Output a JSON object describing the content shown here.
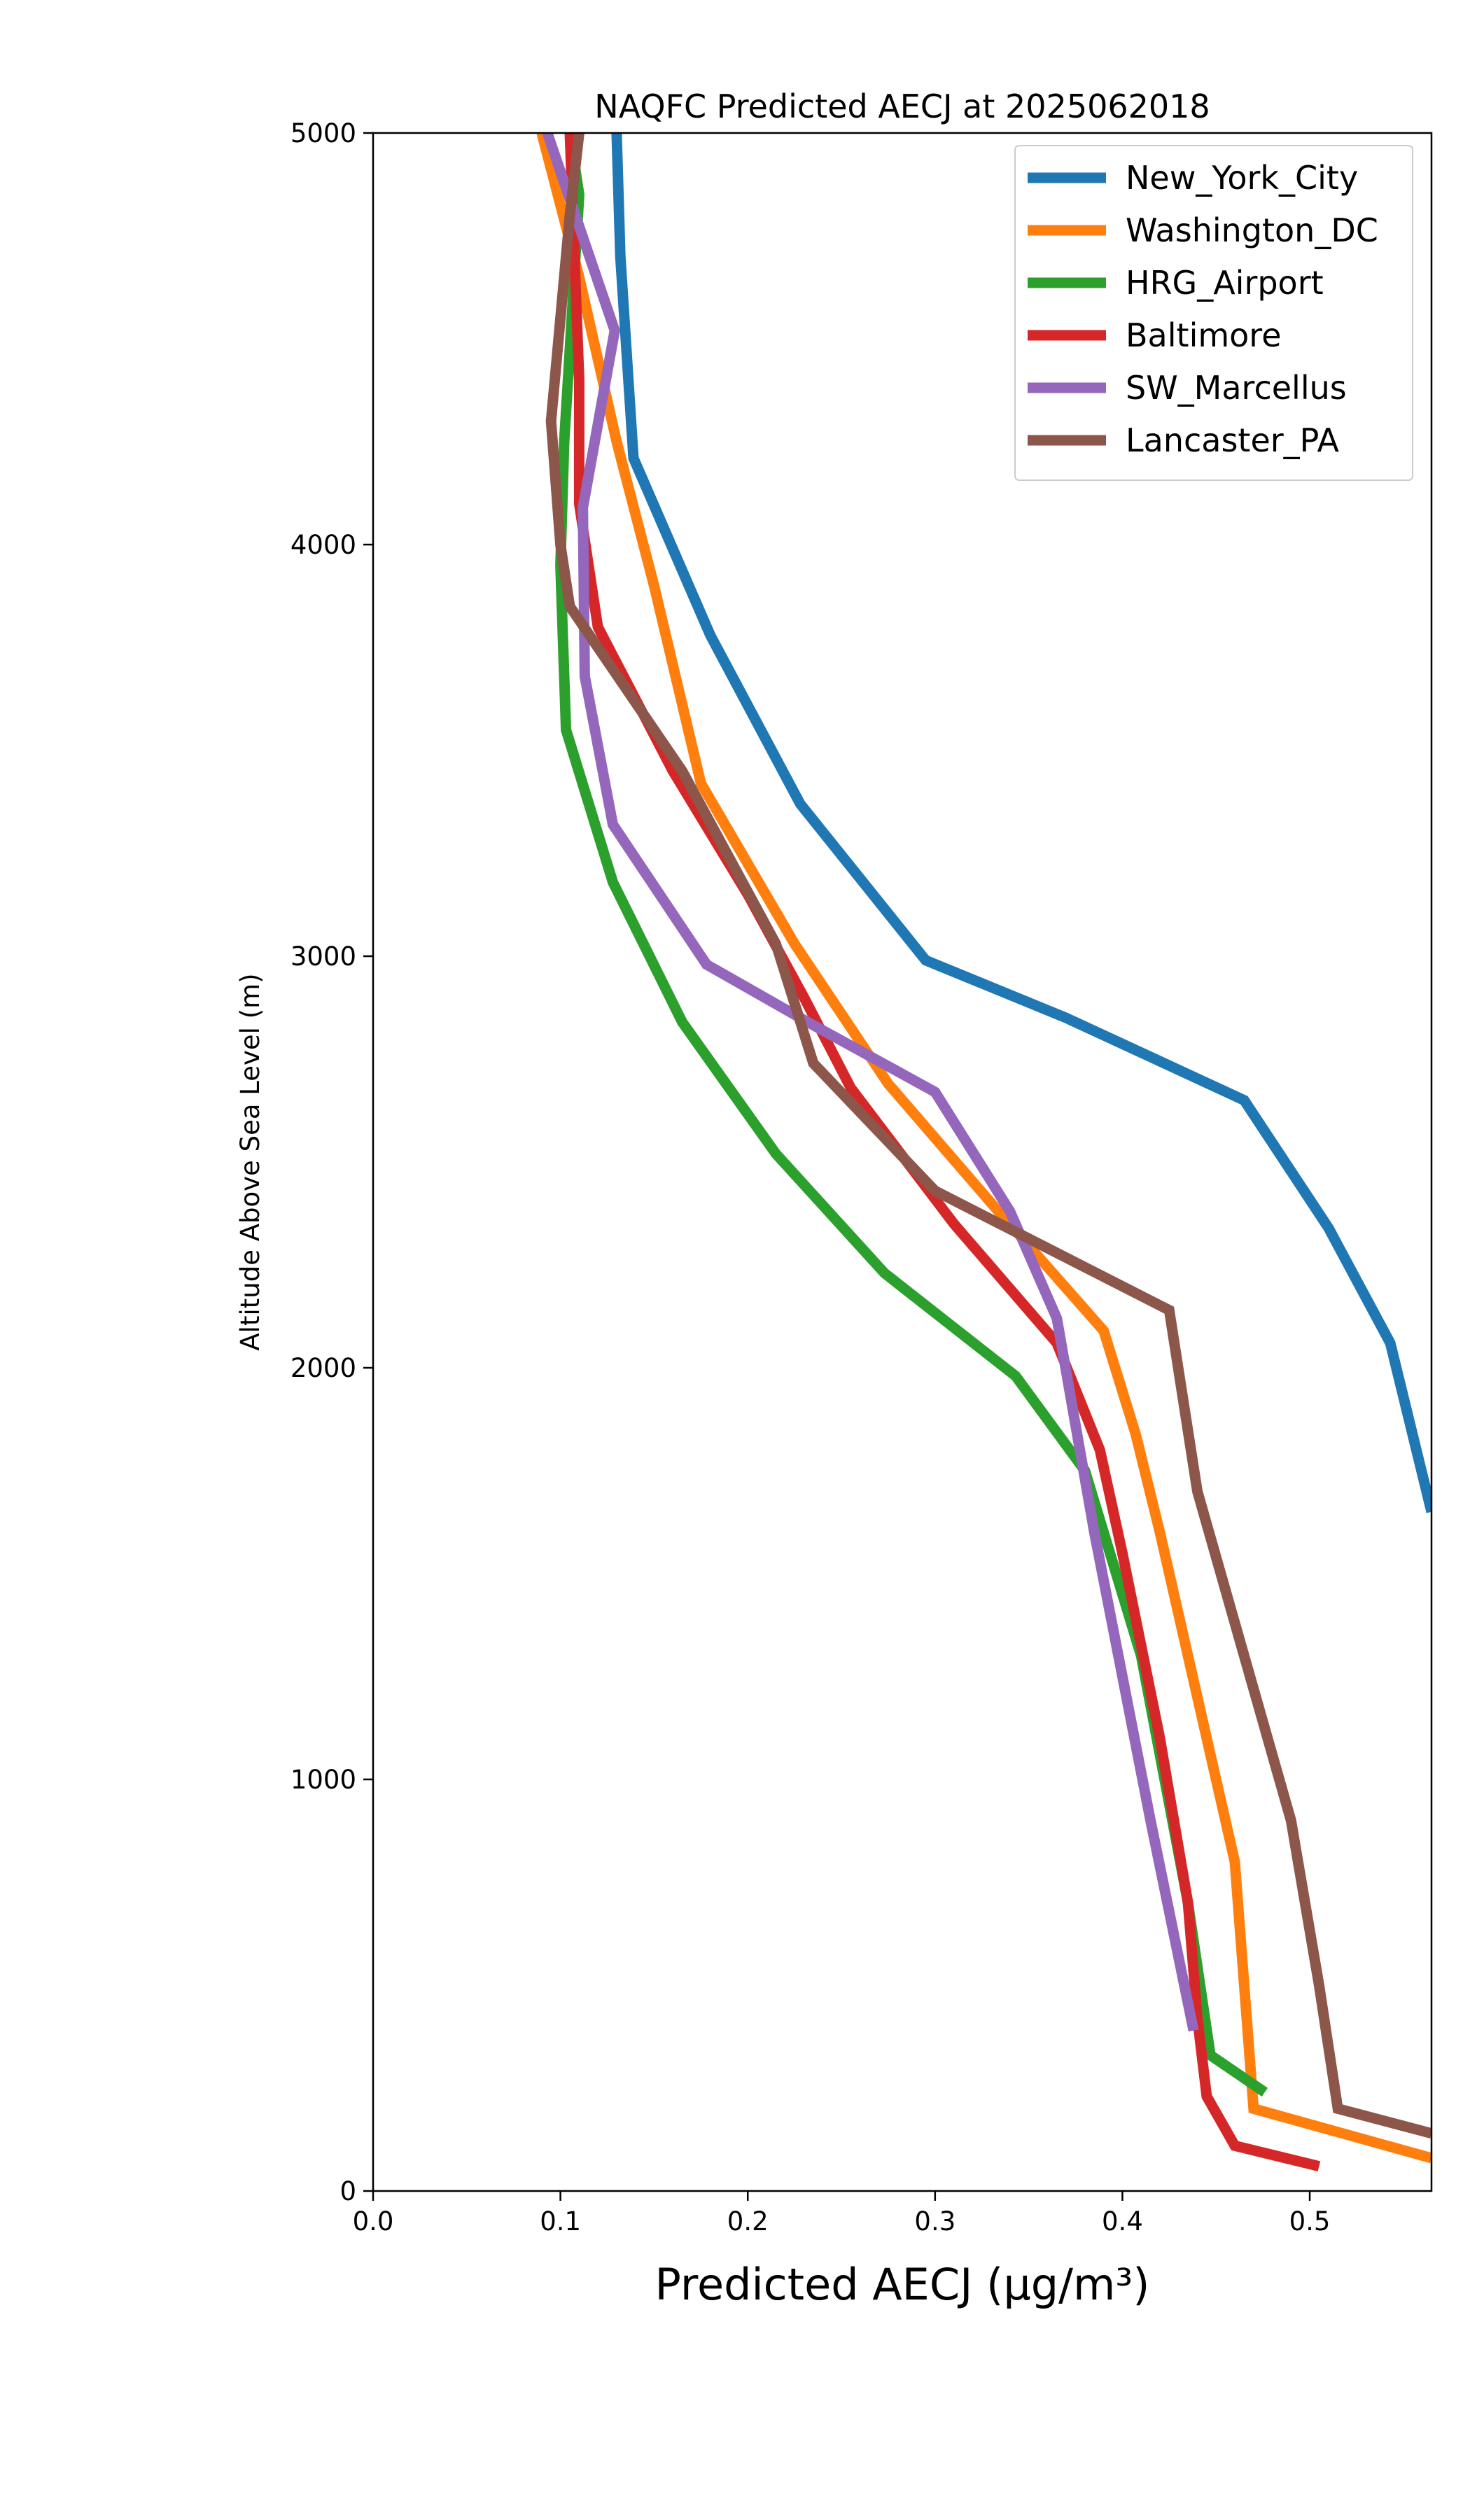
{
  "chart_data": {
    "type": "line",
    "title": "NAQFC Predicted AECJ at 2025062018",
    "xlabel": "Predicted AECJ (μg/m³)",
    "ylabel": "Altitude Above Sea Level (m)",
    "xlim": [
      0.0,
      0.565
    ],
    "ylim": [
      0,
      5000
    ],
    "xticks": [
      "0.0",
      "0.1",
      "0.2",
      "0.3",
      "0.4",
      "0.5"
    ],
    "yticks": [
      "0",
      "1000",
      "2000",
      "3000",
      "4000",
      "5000"
    ],
    "grid": false,
    "legend_placement": "top-right",
    "series": [
      {
        "name": "New_York_City",
        "color": "#1f77b4",
        "x": [
          0.13,
          0.132,
          0.139,
          0.18,
          0.228,
          0.295,
          0.37,
          0.465,
          0.51,
          0.543,
          0.565
        ],
        "y": [
          5000,
          4700,
          4210,
          3780,
          3370,
          2990,
          2850,
          2650,
          2340,
          2060,
          1650
        ]
      },
      {
        "name": "Washington_DC",
        "color": "#ff7f0e",
        "x": [
          0.09,
          0.11,
          0.13,
          0.15,
          0.175,
          0.225,
          0.275,
          0.33,
          0.39,
          0.407,
          0.42,
          0.44,
          0.46,
          0.465,
          0.47,
          0.565
        ],
        "y": [
          5000,
          4650,
          4250,
          3900,
          3420,
          3030,
          2690,
          2400,
          2090,
          1840,
          1600,
          1200,
          800,
          500,
          200,
          80
        ]
      },
      {
        "name": "HRG_Airport",
        "color": "#2ca02c",
        "x": [
          0.105,
          0.11,
          0.102,
          0.1,
          0.103,
          0.128,
          0.165,
          0.215,
          0.273,
          0.343,
          0.38,
          0.41,
          0.435,
          0.447,
          0.476
        ],
        "y": [
          5000,
          4850,
          4250,
          3950,
          3550,
          3180,
          2840,
          2520,
          2230,
          1980,
          1750,
          1300,
          700,
          330,
          240
        ]
      },
      {
        "name": "Baltimore",
        "color": "#d62728",
        "x": [
          0.105,
          0.11,
          0.11,
          0.12,
          0.16,
          0.2,
          0.23,
          0.255,
          0.31,
          0.365,
          0.388,
          0.4,
          0.42,
          0.435,
          0.44,
          0.445,
          0.46,
          0.505
        ],
        "y": [
          5000,
          4400,
          4100,
          3800,
          3450,
          3150,
          2900,
          2680,
          2350,
          2060,
          1800,
          1550,
          1100,
          700,
          420,
          230,
          110,
          60
        ]
      },
      {
        "name": "SW_Marcellus",
        "color": "#9467bd",
        "x": [
          0.093,
          0.108,
          0.129,
          0.112,
          0.113,
          0.128,
          0.178,
          0.232,
          0.3,
          0.34,
          0.365,
          0.385,
          0.415,
          0.438
        ],
        "y": [
          5000,
          4800,
          4520,
          4090,
          3680,
          3320,
          2980,
          2840,
          2670,
          2380,
          2120,
          1600,
          900,
          390
        ]
      },
      {
        "name": "Lancaster_PA",
        "color": "#8c564b",
        "x": [
          0.11,
          0.105,
          0.095,
          0.1,
          0.105,
          0.165,
          0.215,
          0.235,
          0.3,
          0.425,
          0.44,
          0.49,
          0.505,
          0.515,
          0.565
        ],
        "y": [
          5000,
          4800,
          4300,
          4000,
          3850,
          3450,
          3030,
          2740,
          2430,
          2140,
          1700,
          900,
          500,
          200,
          140
        ]
      }
    ]
  }
}
